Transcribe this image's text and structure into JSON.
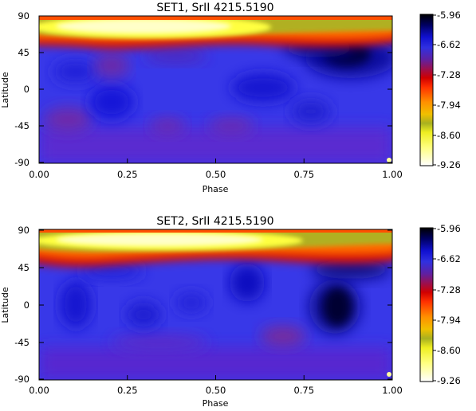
{
  "chart_data": [
    {
      "type": "heatmap",
      "title": "SET1, SrII 4215.5190",
      "xlabel": "Phase",
      "ylabel": "Latitude",
      "xlim": [
        0.0,
        1.0
      ],
      "ylim": [
        -90,
        90
      ],
      "x_ticks": [
        "0.00",
        "0.25",
        "0.50",
        "0.75",
        "1.00"
      ],
      "y_ticks": [
        "90",
        "45",
        "0",
        "-45",
        "-90"
      ],
      "colorbar": {
        "ticks": [
          "-5.96",
          "-6.62",
          "-7.28",
          "-7.94",
          "-8.60",
          "-9.26"
        ],
        "range": [
          -9.26,
          -5.96
        ]
      },
      "features": [
        {
          "kind": "bright polar band",
          "lat_range": [
            70,
            90
          ],
          "phase_range": [
            0.0,
            1.0
          ],
          "value_approx": -9.0
        },
        {
          "kind": "dark spot",
          "lat": 45,
          "phase": 0.85,
          "value_approx": -6.0
        },
        {
          "kind": "dark spot",
          "lat": -5,
          "phase": 0.2,
          "value_approx": -6.4
        },
        {
          "kind": "purple patch",
          "lat": -40,
          "phase": 0.08,
          "value_approx": -7.0
        }
      ]
    },
    {
      "type": "heatmap",
      "title": "SET2, SrII 4215.5190",
      "xlabel": "Phase",
      "ylabel": "Latitude",
      "xlim": [
        0.0,
        1.0
      ],
      "ylim": [
        -90,
        90
      ],
      "x_ticks": [
        "0.00",
        "0.25",
        "0.50",
        "0.75",
        "1.00"
      ],
      "y_ticks": [
        "90",
        "45",
        "0",
        "-45",
        "-90"
      ],
      "colorbar": {
        "ticks": [
          "-5.96",
          "-6.62",
          "-7.28",
          "-7.94",
          "-8.60",
          "-9.26"
        ],
        "range": [
          -9.26,
          -5.96
        ]
      },
      "features": [
        {
          "kind": "bright polar band",
          "lat_range": [
            65,
            90
          ],
          "phase_range": [
            0.0,
            1.0
          ],
          "value_approx": -9.1
        },
        {
          "kind": "dark spot",
          "lat": 0,
          "phase": 0.84,
          "value_approx": -6.0
        },
        {
          "kind": "dark spot",
          "lat": 10,
          "phase": 0.57,
          "value_approx": -6.4
        },
        {
          "kind": "purple patch",
          "lat": -40,
          "phase": 0.69,
          "value_approx": -7.1
        }
      ]
    }
  ]
}
